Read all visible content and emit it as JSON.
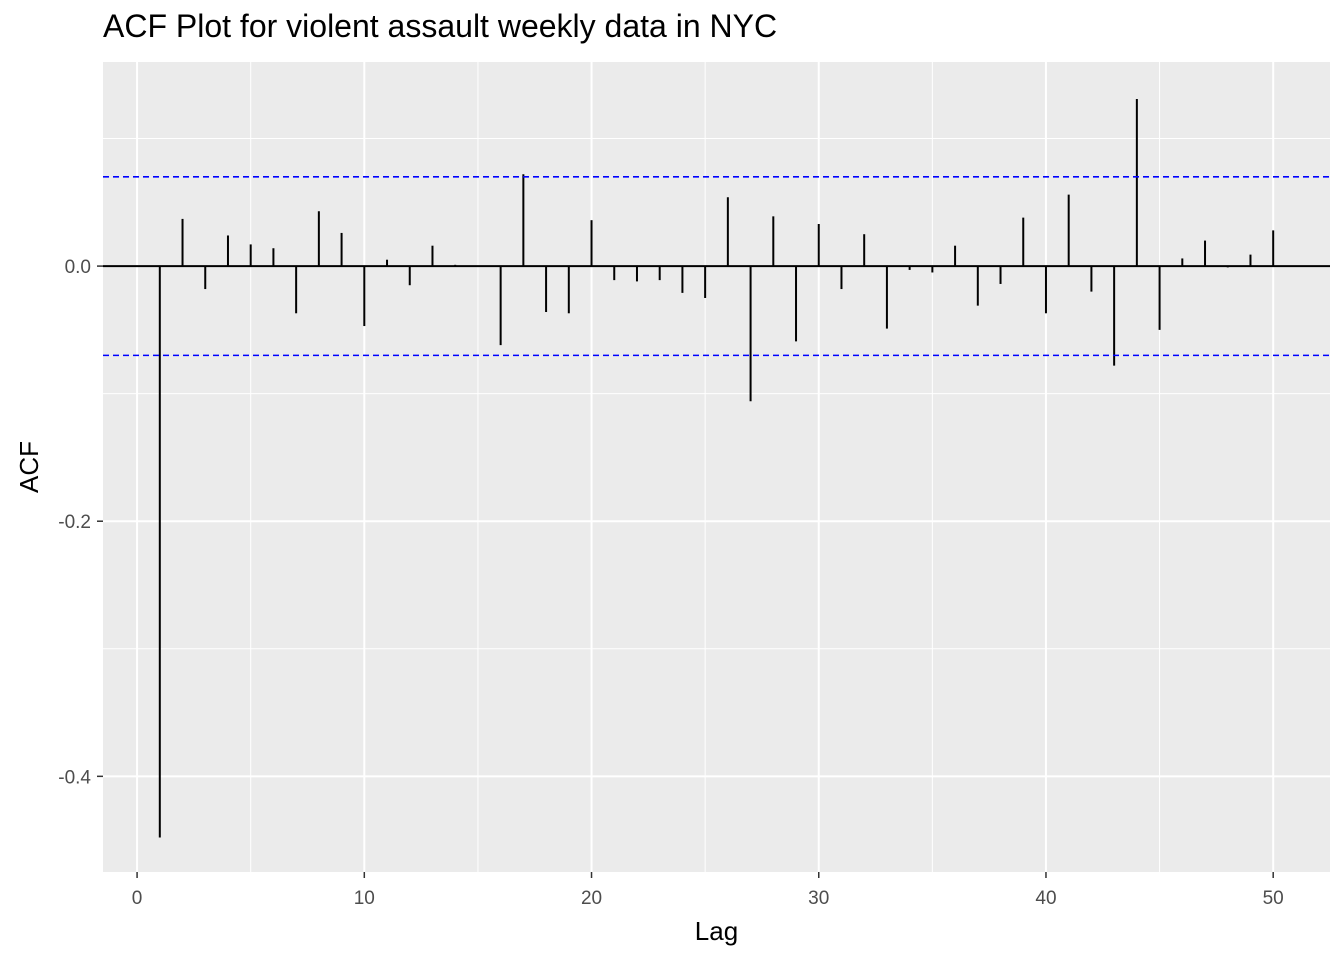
{
  "chart_data": {
    "type": "bar",
    "title": "ACF Plot for violent assault weekly data in NYC",
    "xlabel": "Lag",
    "ylabel": "ACF",
    "xlim": [
      -1.5,
      52.5
    ],
    "ylim": [
      -0.475,
      0.16
    ],
    "x_ticks": [
      0,
      10,
      20,
      30,
      40,
      50
    ],
    "x_tick_labels": [
      "0",
      "10",
      "20",
      "30",
      "40",
      "50"
    ],
    "y_ticks": [
      -0.4,
      -0.2,
      0.0
    ],
    "y_tick_labels": [
      "-0.4",
      "-0.2",
      "0.0"
    ],
    "grid": true,
    "confidence_bound": 0.07,
    "colors": {
      "panel": "#ebebeb",
      "grid": "#ffffff",
      "bars": "#000000",
      "bounds": "#0000ff"
    },
    "x": [
      1,
      2,
      3,
      4,
      5,
      6,
      7,
      8,
      9,
      10,
      11,
      12,
      13,
      14,
      15,
      16,
      17,
      18,
      19,
      20,
      21,
      22,
      23,
      24,
      25,
      26,
      27,
      28,
      29,
      30,
      31,
      32,
      33,
      34,
      35,
      36,
      37,
      38,
      39,
      40,
      41,
      42,
      43,
      44,
      45,
      46,
      47,
      48,
      49,
      50
    ],
    "values": [
      -0.448,
      0.037,
      -0.018,
      0.024,
      0.017,
      0.014,
      -0.037,
      0.043,
      0.026,
      -0.047,
      0.005,
      -0.015,
      0.016,
      0.001,
      0.0,
      -0.062,
      0.072,
      -0.036,
      -0.037,
      0.036,
      -0.011,
      -0.012,
      -0.011,
      -0.021,
      -0.025,
      0.054,
      -0.106,
      0.039,
      -0.059,
      0.033,
      -0.018,
      0.025,
      -0.049,
      -0.003,
      -0.005,
      0.016,
      -0.031,
      -0.014,
      0.038,
      -0.037,
      0.056,
      -0.02,
      -0.078,
      0.131,
      -0.05,
      0.006,
      0.02,
      -0.001,
      0.009,
      0.028
    ]
  }
}
